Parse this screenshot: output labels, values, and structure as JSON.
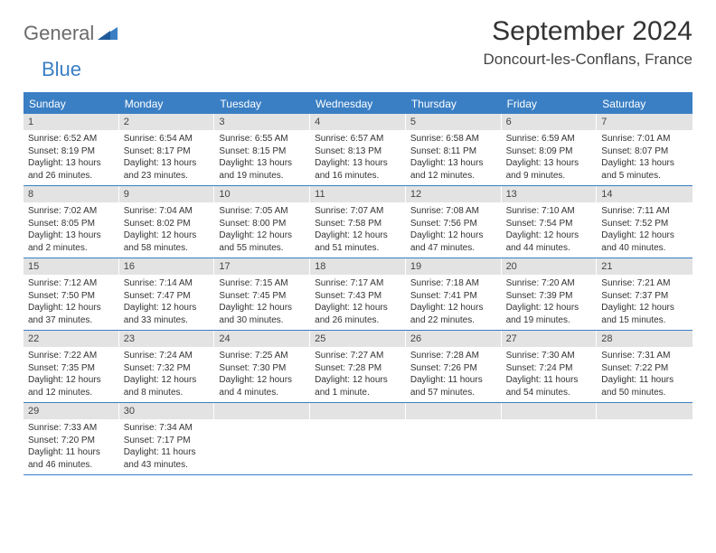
{
  "brand": {
    "part1": "General",
    "part2": "Blue"
  },
  "title": "September 2024",
  "location": "Doncourt-les-Conflans, France",
  "colors": {
    "accent": "#3a7fc4",
    "dayHeaderBg": "#e3e3e3",
    "text": "#333333",
    "logoGray": "#6b6b6b"
  },
  "weekdays": [
    "Sunday",
    "Monday",
    "Tuesday",
    "Wednesday",
    "Thursday",
    "Friday",
    "Saturday"
  ],
  "weeks": [
    [
      {
        "n": "1",
        "sunrise": "6:52 AM",
        "sunset": "8:19 PM",
        "daylight": "13 hours and 26 minutes."
      },
      {
        "n": "2",
        "sunrise": "6:54 AM",
        "sunset": "8:17 PM",
        "daylight": "13 hours and 23 minutes."
      },
      {
        "n": "3",
        "sunrise": "6:55 AM",
        "sunset": "8:15 PM",
        "daylight": "13 hours and 19 minutes."
      },
      {
        "n": "4",
        "sunrise": "6:57 AM",
        "sunset": "8:13 PM",
        "daylight": "13 hours and 16 minutes."
      },
      {
        "n": "5",
        "sunrise": "6:58 AM",
        "sunset": "8:11 PM",
        "daylight": "13 hours and 12 minutes."
      },
      {
        "n": "6",
        "sunrise": "6:59 AM",
        "sunset": "8:09 PM",
        "daylight": "13 hours and 9 minutes."
      },
      {
        "n": "7",
        "sunrise": "7:01 AM",
        "sunset": "8:07 PM",
        "daylight": "13 hours and 5 minutes."
      }
    ],
    [
      {
        "n": "8",
        "sunrise": "7:02 AM",
        "sunset": "8:05 PM",
        "daylight": "13 hours and 2 minutes."
      },
      {
        "n": "9",
        "sunrise": "7:04 AM",
        "sunset": "8:02 PM",
        "daylight": "12 hours and 58 minutes."
      },
      {
        "n": "10",
        "sunrise": "7:05 AM",
        "sunset": "8:00 PM",
        "daylight": "12 hours and 55 minutes."
      },
      {
        "n": "11",
        "sunrise": "7:07 AM",
        "sunset": "7:58 PM",
        "daylight": "12 hours and 51 minutes."
      },
      {
        "n": "12",
        "sunrise": "7:08 AM",
        "sunset": "7:56 PM",
        "daylight": "12 hours and 47 minutes."
      },
      {
        "n": "13",
        "sunrise": "7:10 AM",
        "sunset": "7:54 PM",
        "daylight": "12 hours and 44 minutes."
      },
      {
        "n": "14",
        "sunrise": "7:11 AM",
        "sunset": "7:52 PM",
        "daylight": "12 hours and 40 minutes."
      }
    ],
    [
      {
        "n": "15",
        "sunrise": "7:12 AM",
        "sunset": "7:50 PM",
        "daylight": "12 hours and 37 minutes."
      },
      {
        "n": "16",
        "sunrise": "7:14 AM",
        "sunset": "7:47 PM",
        "daylight": "12 hours and 33 minutes."
      },
      {
        "n": "17",
        "sunrise": "7:15 AM",
        "sunset": "7:45 PM",
        "daylight": "12 hours and 30 minutes."
      },
      {
        "n": "18",
        "sunrise": "7:17 AM",
        "sunset": "7:43 PM",
        "daylight": "12 hours and 26 minutes."
      },
      {
        "n": "19",
        "sunrise": "7:18 AM",
        "sunset": "7:41 PM",
        "daylight": "12 hours and 22 minutes."
      },
      {
        "n": "20",
        "sunrise": "7:20 AM",
        "sunset": "7:39 PM",
        "daylight": "12 hours and 19 minutes."
      },
      {
        "n": "21",
        "sunrise": "7:21 AM",
        "sunset": "7:37 PM",
        "daylight": "12 hours and 15 minutes."
      }
    ],
    [
      {
        "n": "22",
        "sunrise": "7:22 AM",
        "sunset": "7:35 PM",
        "daylight": "12 hours and 12 minutes."
      },
      {
        "n": "23",
        "sunrise": "7:24 AM",
        "sunset": "7:32 PM",
        "daylight": "12 hours and 8 minutes."
      },
      {
        "n": "24",
        "sunrise": "7:25 AM",
        "sunset": "7:30 PM",
        "daylight": "12 hours and 4 minutes."
      },
      {
        "n": "25",
        "sunrise": "7:27 AM",
        "sunset": "7:28 PM",
        "daylight": "12 hours and 1 minute."
      },
      {
        "n": "26",
        "sunrise": "7:28 AM",
        "sunset": "7:26 PM",
        "daylight": "11 hours and 57 minutes."
      },
      {
        "n": "27",
        "sunrise": "7:30 AM",
        "sunset": "7:24 PM",
        "daylight": "11 hours and 54 minutes."
      },
      {
        "n": "28",
        "sunrise": "7:31 AM",
        "sunset": "7:22 PM",
        "daylight": "11 hours and 50 minutes."
      }
    ],
    [
      {
        "n": "29",
        "sunrise": "7:33 AM",
        "sunset": "7:20 PM",
        "daylight": "11 hours and 46 minutes."
      },
      {
        "n": "30",
        "sunrise": "7:34 AM",
        "sunset": "7:17 PM",
        "daylight": "11 hours and 43 minutes."
      },
      {
        "empty": true
      },
      {
        "empty": true
      },
      {
        "empty": true
      },
      {
        "empty": true
      },
      {
        "empty": true
      }
    ]
  ],
  "labels": {
    "sunrise": "Sunrise:",
    "sunset": "Sunset:",
    "daylight": "Daylight:"
  }
}
